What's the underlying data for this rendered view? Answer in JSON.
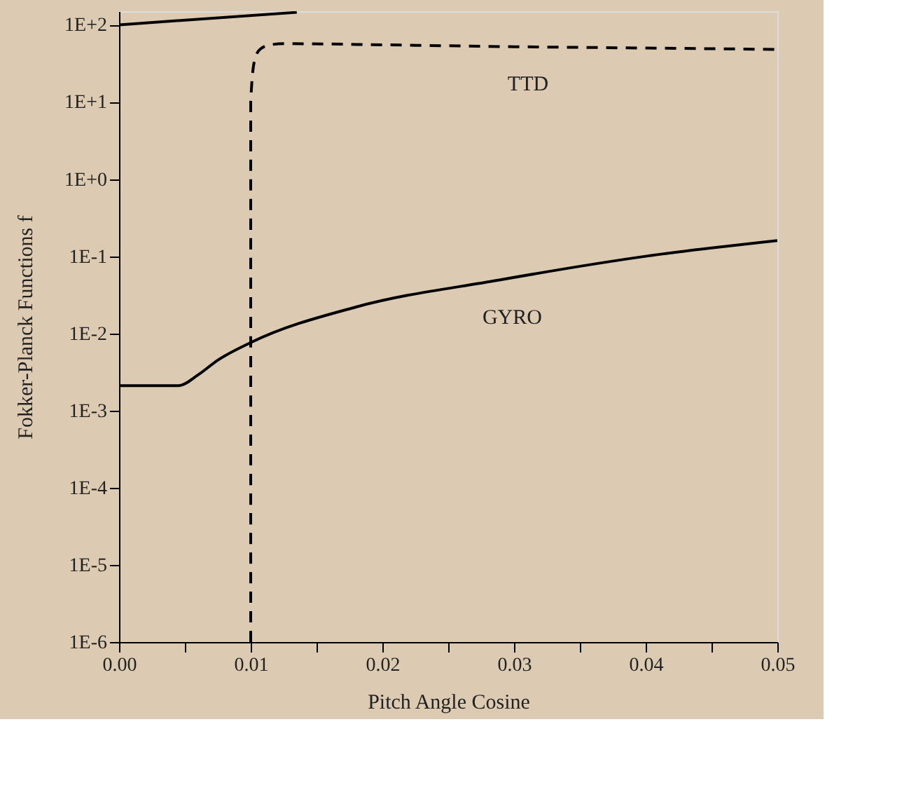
{
  "chart_data": {
    "type": "line",
    "xlabel": "Pitch Angle Cosine",
    "ylabel": "Fokker-Planck Functions f",
    "log": "y",
    "grid": false,
    "xlim": [
      0,
      0.05
    ],
    "ylim": [
      1e-06,
      150
    ],
    "xticks": [
      {
        "value": 0,
        "label": "0.00"
      },
      {
        "value": 0.005,
        "label": null
      },
      {
        "value": 0.01,
        "label": "0.01"
      },
      {
        "value": 0.015,
        "label": null
      },
      {
        "value": 0.02,
        "label": "0.02"
      },
      {
        "value": 0.025,
        "label": null
      },
      {
        "value": 0.03,
        "label": "0.03"
      },
      {
        "value": 0.035,
        "label": null
      },
      {
        "value": 0.04,
        "label": "0.04"
      },
      {
        "value": 0.045,
        "label": null
      },
      {
        "value": 0.05,
        "label": "0.05"
      }
    ],
    "yticks": [
      {
        "value": 1e-06,
        "label": "1E-6"
      },
      {
        "value": 1e-05,
        "label": "1E-5"
      },
      {
        "value": 0.0001,
        "label": "1E-4"
      },
      {
        "value": 0.001,
        "label": "1E-3"
      },
      {
        "value": 0.01,
        "label": "1E-2"
      },
      {
        "value": 0.1,
        "label": "1E-1"
      },
      {
        "value": 1,
        "label": "1E+0"
      },
      {
        "value": 10,
        "label": "1E+1"
      },
      {
        "value": 100,
        "label": "1E+2"
      }
    ],
    "series": [
      {
        "color": "#000000",
        "line_style": "solid",
        "x": [
          0,
          0.0135
        ],
        "values": [
          100,
          145
        ]
      },
      {
        "name": "TTD",
        "color": "#000000",
        "line_style": "dashed",
        "x": [
          0.01,
          0.01,
          0.0103,
          0.0107,
          0.0115,
          0.0125,
          0.02,
          0.03,
          0.04,
          0.05
        ],
        "values": [
          1e-06,
          10,
          35,
          48,
          55,
          57,
          55,
          52,
          50,
          48
        ]
      },
      {
        "name": "GYRO",
        "color": "#000000",
        "line_style": "solid",
        "x": [
          0,
          0.0045,
          0.006,
          0.0075,
          0.01,
          0.018,
          0.0288,
          0.04,
          0.05
        ],
        "values": [
          0.0021,
          0.0021,
          0.0029,
          0.0045,
          0.0076,
          0.022,
          0.049,
          0.1,
          0.16
        ]
      }
    ]
  }
}
